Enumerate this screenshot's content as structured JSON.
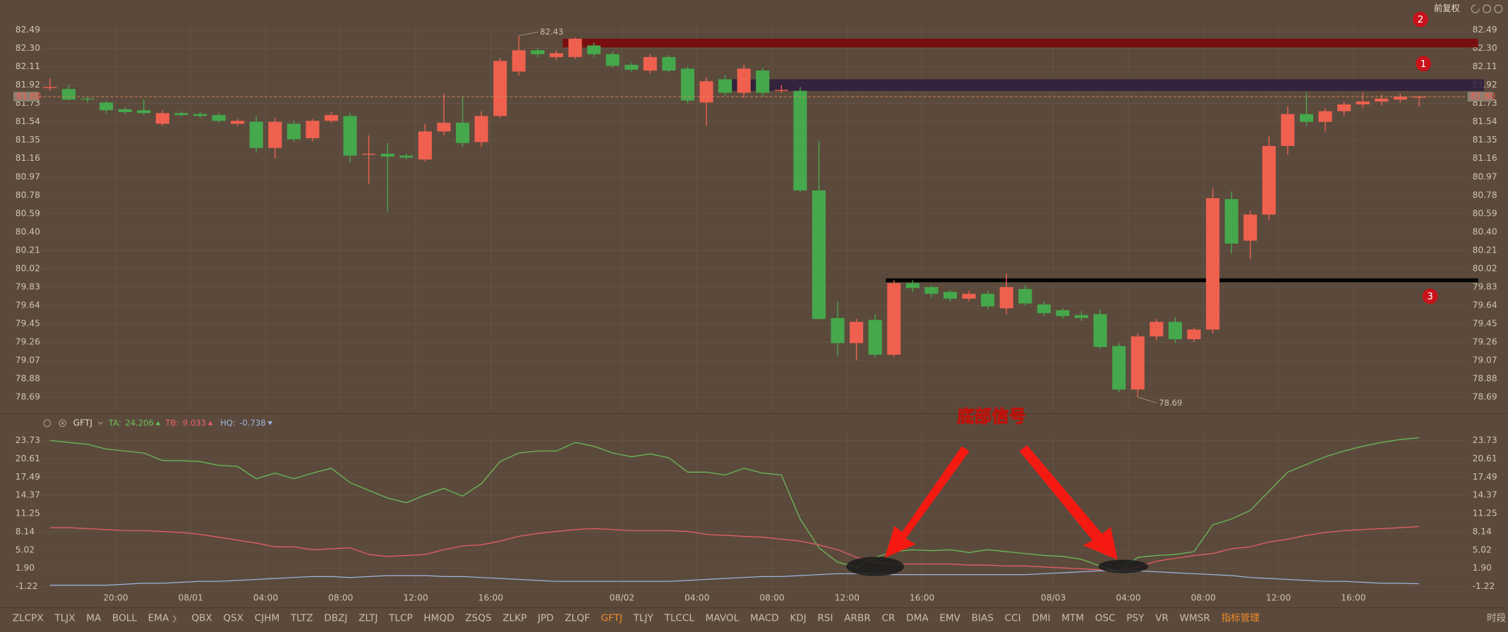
{
  "top_label": "前复权",
  "signal_label": "底部信号",
  "toolbar": {
    "items": [
      "ZLCPX",
      "TLJX",
      "MA",
      "BOLL",
      "EMA",
      "QBX",
      "QSX",
      "CJHM",
      "TLTZ",
      "DBZJ",
      "ZLTJ",
      "TLCP",
      "HMQD",
      "ZSQS",
      "ZLKP",
      "JPD",
      "ZLQF",
      "GFTJ",
      "TLJY",
      "TLCCL",
      "MAVOL",
      "MACD",
      "KDJ",
      "RSI",
      "ARBR",
      "CR",
      "DMA",
      "EMV",
      "BIAS",
      "CCI",
      "DMI",
      "MTM",
      "OSC",
      "PSY",
      "VR",
      "WMSR"
    ],
    "manage": "指标管理",
    "period": "时段"
  },
  "chart_data": [
    {
      "type": "candlestick",
      "categories": [
        null,
        null,
        null,
        null,
        "20:00",
        null,
        null,
        null,
        "08/01",
        null,
        null,
        null,
        "04:00",
        null,
        null,
        null,
        "08:00",
        null,
        null,
        null,
        "12:00",
        null,
        null,
        null,
        "16:00",
        null,
        null,
        null,
        null,
        null,
        null,
        "08/02",
        null,
        null,
        null,
        "04:00",
        null,
        null,
        null,
        "08:00",
        null,
        null,
        null,
        "12:00",
        null,
        null,
        null,
        "16:00",
        null,
        null,
        null,
        null,
        null,
        null,
        "08/03",
        null,
        null,
        null,
        "04:00",
        null,
        null,
        null,
        "08:00",
        null,
        null,
        null,
        "12:00",
        null,
        null,
        null,
        "16:00",
        null,
        null,
        null
      ],
      "open": [
        81.9,
        81.88,
        81.78,
        81.74,
        81.67,
        81.66,
        81.52,
        81.63,
        81.62,
        81.61,
        81.52,
        81.54,
        81.27,
        81.52,
        81.37,
        81.55,
        81.6,
        81.2,
        81.21,
        81.19,
        81.15,
        81.44,
        81.53,
        81.33,
        81.6,
        82.06,
        82.28,
        82.21,
        82.21,
        82.33,
        82.24,
        82.13,
        82.07,
        82.21,
        82.09,
        81.74,
        81.98,
        81.84,
        82.07,
        81.86,
        81.86,
        80.83,
        79.51,
        79.25,
        79.49,
        79.13,
        79.87,
        79.83,
        79.78,
        79.71,
        79.76,
        79.61,
        79.81,
        79.65,
        79.59,
        79.54,
        79.55,
        79.22,
        78.77,
        79.32,
        79.47,
        79.29,
        79.39,
        80.74,
        80.31,
        80.58,
        81.29,
        81.62,
        81.54,
        81.65,
        81.72,
        81.75,
        81.77,
        81.79
      ],
      "high": [
        81.99,
        81.92,
        81.8,
        81.76,
        81.69,
        81.77,
        81.66,
        81.65,
        81.64,
        81.63,
        81.57,
        81.6,
        81.58,
        81.55,
        81.57,
        81.64,
        81.63,
        81.4,
        81.32,
        81.21,
        81.52,
        81.83,
        81.8,
        81.65,
        82.2,
        82.43,
        82.3,
        82.28,
        82.41,
        82.36,
        82.27,
        82.15,
        82.24,
        82.23,
        82.11,
        82.0,
        82.02,
        82.13,
        82.1,
        81.92,
        81.9,
        81.34,
        79.68,
        79.5,
        79.55,
        79.9,
        79.9,
        79.85,
        79.8,
        79.79,
        79.79,
        79.97,
        79.85,
        79.68,
        79.61,
        79.58,
        79.6,
        79.25,
        79.35,
        79.5,
        79.52,
        79.41,
        80.85,
        80.82,
        80.62,
        81.39,
        81.7,
        81.84,
        81.68,
        81.75,
        81.84,
        81.82,
        81.83,
        81.81
      ],
      "low": [
        81.86,
        81.76,
        81.74,
        81.63,
        81.62,
        81.61,
        81.5,
        81.59,
        81.58,
        81.53,
        81.5,
        81.22,
        81.16,
        81.33,
        81.34,
        81.53,
        81.12,
        80.9,
        80.61,
        81.15,
        81.13,
        81.4,
        81.28,
        81.28,
        81.58,
        82.02,
        82.21,
        82.18,
        82.19,
        82.21,
        82.1,
        82.06,
        82.04,
        82.05,
        81.73,
        81.5,
        81.81,
        81.79,
        81.8,
        81.84,
        80.81,
        79.49,
        79.12,
        79.07,
        79.1,
        79.11,
        79.78,
        79.72,
        79.68,
        79.68,
        79.6,
        79.55,
        79.64,
        79.53,
        79.5,
        79.48,
        79.19,
        78.74,
        78.69,
        79.28,
        79.25,
        79.26,
        79.35,
        80.18,
        80.12,
        80.52,
        81.2,
        81.5,
        81.44,
        81.6,
        81.68,
        81.71,
        81.74,
        81.7
      ],
      "close": [
        81.9,
        81.77,
        81.77,
        81.66,
        81.64,
        81.63,
        81.63,
        81.61,
        81.6,
        81.55,
        81.55,
        81.27,
        81.54,
        81.36,
        81.55,
        81.61,
        81.19,
        81.21,
        81.18,
        81.17,
        81.44,
        81.53,
        81.32,
        81.6,
        82.17,
        82.28,
        82.24,
        82.25,
        82.4,
        82.24,
        82.12,
        82.08,
        82.21,
        82.07,
        81.76,
        81.96,
        81.84,
        82.09,
        81.84,
        81.87,
        80.83,
        79.5,
        79.25,
        79.47,
        79.13,
        79.87,
        79.82,
        79.76,
        79.71,
        79.76,
        79.63,
        79.83,
        79.66,
        79.56,
        79.53,
        79.51,
        79.21,
        78.77,
        79.32,
        79.47,
        79.29,
        79.39,
        80.75,
        80.28,
        80.58,
        81.29,
        81.62,
        81.54,
        81.65,
        81.72,
        81.75,
        81.78,
        81.8,
        81.8
      ],
      "up_color": "#f0604f",
      "down_color": "#45a84c",
      "ylim": [
        78.69,
        82.49
      ],
      "yticks": [
        82.49,
        {
          "value": 82.3,
          "label": "82.30"
        },
        82.11,
        81.92,
        81.73,
        81.54,
        81.35,
        81.16,
        80.97,
        80.78,
        80.59,
        {
          "value": 80.4,
          "label": "80.40"
        },
        80.21,
        80.02,
        79.83,
        79.64,
        79.45,
        79.26,
        79.07,
        78.88,
        78.69
      ],
      "grid": true,
      "last_label": "81.80",
      "annotations": [
        {
          "value": 82.43,
          "label": "82.43"
        },
        {
          "value": 78.69,
          "label": "78.69"
        }
      ],
      "drawings": [
        {
          "label": "2",
          "low": 82.31,
          "high": 82.4,
          "color": "#7a0c0c"
        },
        {
          "label": "1",
          "low": 81.86,
          "high": 81.98,
          "color": "#2d1c3c"
        },
        {
          "label": "3",
          "low": 79.88,
          "high": 79.92,
          "color": "#000000"
        }
      ]
    },
    {
      "type": "line",
      "title": "GFTJ",
      "series": [
        {
          "name": "TA:",
          "color": "#6cc05a",
          "values": [
            23.73,
            23.4,
            23.08,
            22.26,
            21.93,
            21.6,
            20.3,
            20.3,
            20.13,
            19.48,
            19.31,
            17.19,
            18.17,
            17.19,
            18.17,
            18.99,
            16.53,
            15.22,
            13.91,
            13.1,
            14.41,
            15.55,
            14.24,
            16.37,
            20.13,
            21.6,
            21.93,
            21.93,
            23.4,
            22.75,
            21.6,
            20.95,
            21.44,
            20.79,
            18.33,
            18.33,
            17.84,
            18.99,
            18.17,
            17.84,
            10.32,
            5.41,
            2.95,
            2.13,
            3.77,
            4.75,
            5.08,
            4.91,
            5.08,
            4.59,
            5.08,
            4.75,
            4.42,
            4.1,
            3.93,
            3.44,
            2.29,
            1.31,
            3.77,
            4.1,
            4.26,
            4.75,
            9.33,
            10.32,
            11.79,
            15.06,
            18.33,
            19.64,
            20.95,
            21.93,
            22.75,
            23.4,
            23.89,
            24.206
          ]
        },
        {
          "name": "TB:",
          "color": "#ec5f68",
          "values": [
            8.84,
            8.84,
            8.68,
            8.52,
            8.35,
            8.35,
            8.19,
            8.02,
            7.7,
            7.21,
            6.72,
            6.22,
            5.57,
            5.57,
            5.08,
            5.24,
            5.41,
            4.26,
            3.93,
            4.1,
            4.26,
            5.08,
            5.73,
            5.9,
            6.55,
            7.37,
            7.86,
            8.19,
            8.52,
            8.68,
            8.52,
            8.35,
            8.35,
            8.35,
            8.19,
            7.7,
            7.53,
            7.37,
            7.21,
            6.88,
            6.55,
            5.9,
            5.08,
            3.77,
            2.95,
            2.63,
            2.63,
            2.63,
            2.63,
            2.46,
            2.46,
            2.3,
            2.3,
            2.14,
            1.97,
            1.81,
            1.64,
            1.48,
            2.14,
            3.12,
            3.61,
            4.1,
            4.43,
            5.24,
            5.57,
            6.39,
            6.88,
            7.53,
            8.02,
            8.35,
            8.52,
            8.68,
            8.84,
            9.033
          ]
        },
        {
          "name": "HQ:",
          "color": "#9fb6e0",
          "values": [
            -0.97,
            -0.97,
            -0.97,
            -0.97,
            -0.81,
            -0.65,
            -0.65,
            -0.48,
            -0.32,
            -0.32,
            -0.16,
            0.01,
            0.17,
            0.34,
            0.5,
            0.5,
            0.34,
            0.5,
            0.66,
            0.66,
            0.66,
            0.5,
            0.5,
            0.34,
            0.17,
            0.01,
            -0.16,
            -0.32,
            -0.32,
            -0.32,
            -0.32,
            -0.32,
            -0.32,
            -0.32,
            -0.16,
            0.01,
            0.17,
            0.34,
            0.5,
            0.5,
            0.66,
            0.83,
            0.99,
            0.99,
            0.99,
            0.83,
            0.83,
            0.83,
            0.83,
            0.83,
            0.83,
            0.83,
            0.83,
            0.99,
            1.15,
            1.32,
            1.48,
            1.48,
            1.48,
            1.32,
            1.15,
            0.99,
            0.83,
            0.66,
            0.34,
            0.17,
            0.01,
            -0.16,
            -0.32,
            -0.32,
            -0.48,
            -0.65,
            -0.65,
            -0.738
          ]
        }
      ],
      "ylim": [
        -1.22,
        23.73
      ],
      "yticks": [
        23.73,
        20.61,
        17.49,
        14.37,
        11.25,
        8.14,
        5.02,
        {
          "value": 1.9,
          "label": "1.90"
        },
        -1.22
      ],
      "grid": true
    }
  ]
}
